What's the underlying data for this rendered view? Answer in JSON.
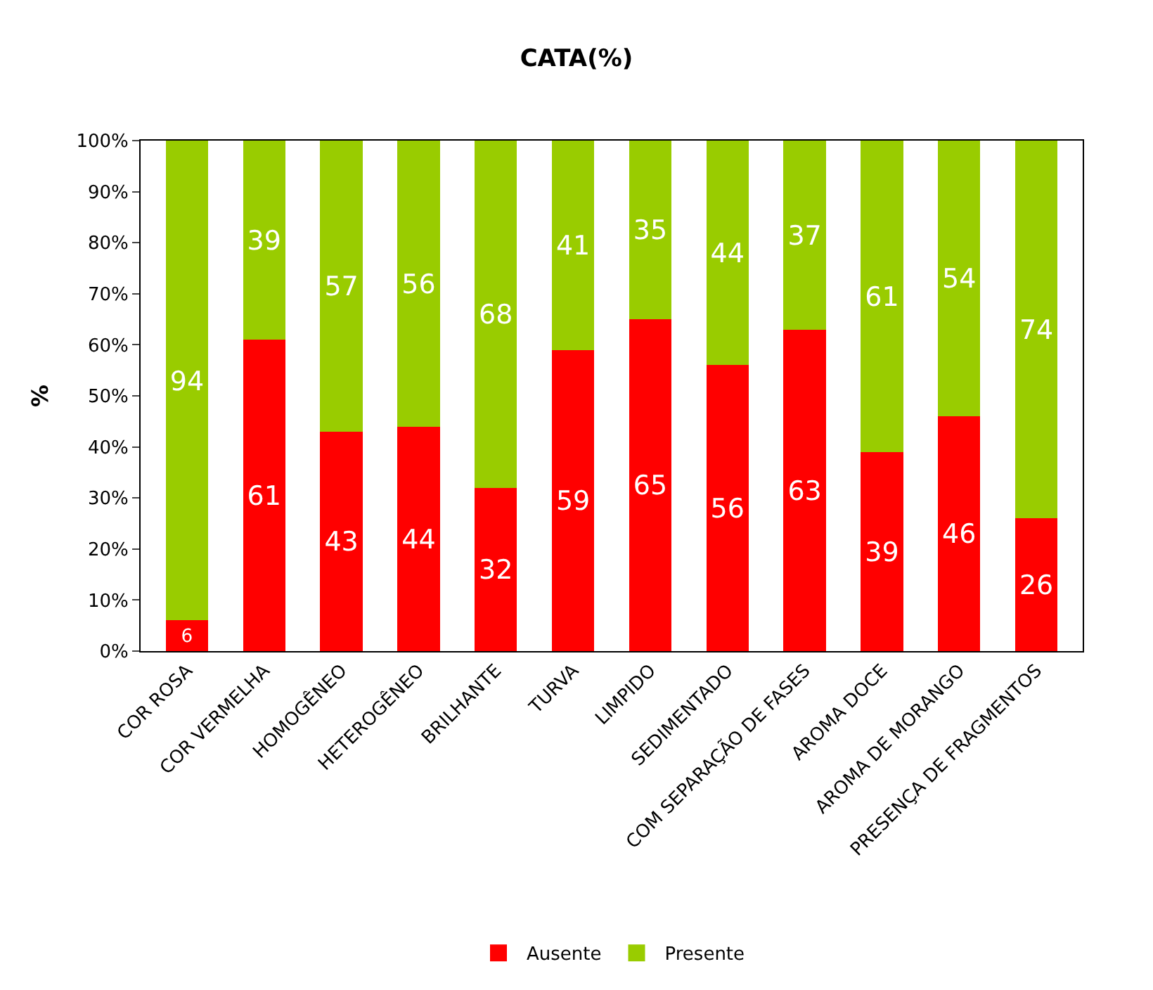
{
  "chart_data": {
    "type": "bar",
    "title": "CATA(%)",
    "ylabel": "%",
    "stacked": true,
    "data_labels": true,
    "legend": "bottom",
    "categories": [
      "COR ROSA",
      "COR VERMELHA",
      "HOMOGÊNEO",
      "HETEROGÊNEO",
      "BRILHANTE",
      "TURVA",
      "LIMPIDO",
      "SEDIMENTADO",
      "COM SEPARAÇÃO DE FASES",
      "AROMA DOCE",
      "AROMA DE MORANGO",
      "PRESENÇA DE FRAGMENTOS"
    ],
    "ylim": [
      0,
      100
    ],
    "yticks": [
      {
        "value": 0,
        "label": "0%"
      },
      {
        "value": 10,
        "label": "10%"
      },
      {
        "value": 20,
        "label": "20%"
      },
      {
        "value": 30,
        "label": "30%"
      },
      {
        "value": 40,
        "label": "40%"
      },
      {
        "value": 50,
        "label": "50%"
      },
      {
        "value": 60,
        "label": "60%"
      },
      {
        "value": 70,
        "label": "70%"
      },
      {
        "value": 80,
        "label": "80%"
      },
      {
        "value": 90,
        "label": "90%"
      },
      {
        "value": 100,
        "label": "100%"
      }
    ],
    "series": [
      {
        "name": "Ausente",
        "color": "#ff0000",
        "values": [
          6,
          61,
          43,
          44,
          32,
          59,
          65,
          56,
          63,
          39,
          46,
          26
        ]
      },
      {
        "name": "Presente",
        "color": "#99cc00",
        "values": [
          94,
          39,
          57,
          56,
          68,
          41,
          35,
          44,
          37,
          61,
          54,
          74
        ]
      }
    ]
  }
}
